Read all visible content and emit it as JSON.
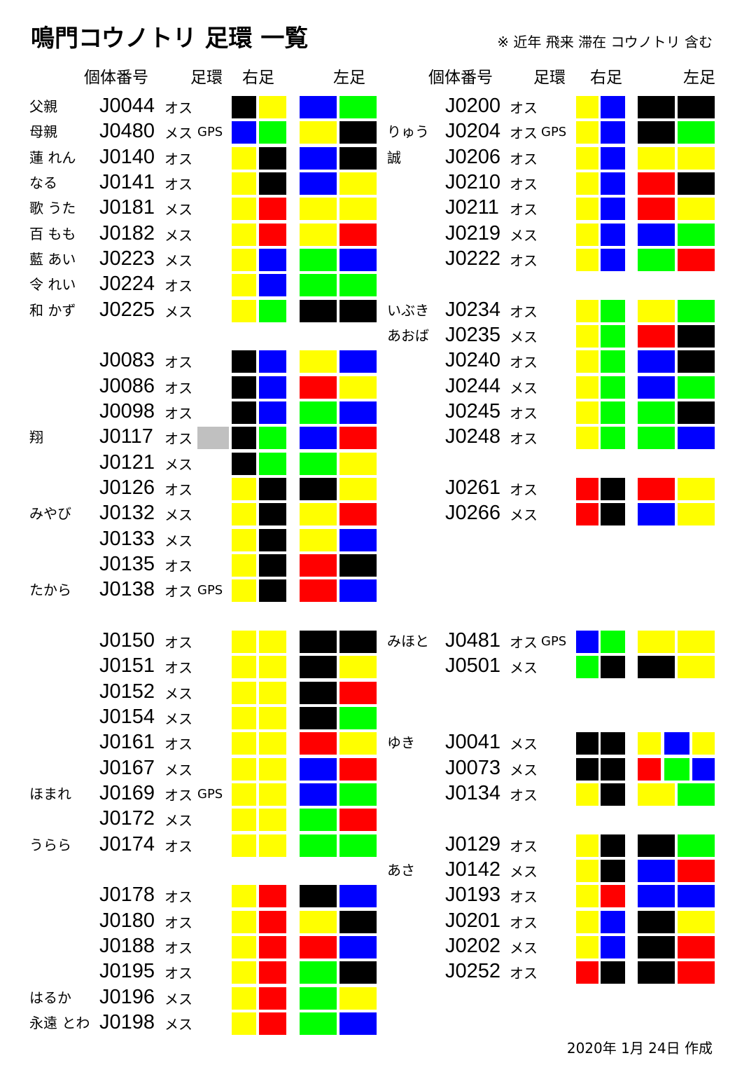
{
  "header": {
    "title": "鳴門コウノトリ 足環 一覧",
    "note": "※ 近年 飛来 滞在 コウノトリ 含む"
  },
  "columns": [
    {
      "headers": {
        "id": "個体番号",
        "ring": "足環",
        "right": "右足",
        "left": "左足"
      },
      "groups": [
        [
          {
            "name": "父親",
            "id": "J0044",
            "sex": "オス",
            "right": [
              "#000",
              "#ff0"
            ],
            "left": [
              "#00f",
              "#0f0"
            ]
          },
          {
            "name": "母親",
            "id": "J0480",
            "sex": "メス",
            "gps": "GPS",
            "right": [
              "#00f",
              "#0f0"
            ],
            "left": [
              "#ff0",
              "#000"
            ]
          },
          {
            "name": "蓮 れん",
            "id": "J0140",
            "sex": "オス",
            "right": [
              "#ff0",
              "#000"
            ],
            "left": [
              "#00f",
              "#000"
            ]
          },
          {
            "name": "なる",
            "id": "J0141",
            "sex": "オス",
            "right": [
              "#ff0",
              "#000"
            ],
            "left": [
              "#00f",
              "#ff0"
            ]
          },
          {
            "name": "歌 うた",
            "id": "J0181",
            "sex": "メス",
            "right": [
              "#ff0",
              "#f00"
            ],
            "left": [
              "#ff0",
              "#ff0"
            ]
          },
          {
            "name": "百 もも",
            "id": "J0182",
            "sex": "メス",
            "right": [
              "#ff0",
              "#f00"
            ],
            "left": [
              "#ff0",
              "#f00"
            ]
          },
          {
            "name": "藍 あい",
            "id": "J0223",
            "sex": "メス",
            "right": [
              "#ff0",
              "#00f"
            ],
            "left": [
              "#0f0",
              "#00f"
            ]
          },
          {
            "name": "令 れい",
            "id": "J0224",
            "sex": "オス",
            "right": [
              "#ff0",
              "#00f"
            ],
            "left": [
              "#0f0",
              "#0f0"
            ]
          },
          {
            "name": "和 かず",
            "id": "J0225",
            "sex": "メス",
            "right": [
              "#ff0",
              "#0f0"
            ],
            "left": [
              "#000",
              "#000"
            ]
          }
        ],
        [
          {
            "id": "J0083",
            "sex": "オス",
            "right": [
              "#000",
              "#00f"
            ],
            "left": [
              "#ff0",
              "#00f"
            ]
          },
          {
            "id": "J0086",
            "sex": "オス",
            "right": [
              "#000",
              "#00f"
            ],
            "left": [
              "#f00",
              "#ff0"
            ]
          },
          {
            "id": "J0098",
            "sex": "オス",
            "right": [
              "#000",
              "#00f"
            ],
            "left": [
              "#0f0",
              "#00f"
            ]
          },
          {
            "name": "翔",
            "id": "J0117",
            "sex": "オス",
            "tag": "#c0c0c0",
            "right": [
              "#000",
              "#0f0"
            ],
            "left": [
              "#00f",
              "#f00"
            ]
          },
          {
            "id": "J0121",
            "sex": "メス",
            "right": [
              "#000",
              "#0f0"
            ],
            "left": [
              "#0f0",
              "#ff0"
            ]
          },
          {
            "id": "J0126",
            "sex": "オス",
            "right": [
              "#ff0",
              "#000"
            ],
            "left": [
              "#000",
              "#ff0"
            ]
          },
          {
            "name": "みやび",
            "id": "J0132",
            "sex": "メス",
            "right": [
              "#ff0",
              "#000"
            ],
            "left": [
              "#ff0",
              "#f00"
            ]
          },
          {
            "id": "J0133",
            "sex": "メス",
            "right": [
              "#ff0",
              "#000"
            ],
            "left": [
              "#ff0",
              "#00f"
            ]
          },
          {
            "id": "J0135",
            "sex": "オス",
            "right": [
              "#ff0",
              "#000"
            ],
            "left": [
              "#f00",
              "#000"
            ]
          },
          {
            "name": "たから",
            "id": "J0138",
            "sex": "オス",
            "gps": "GPS",
            "right": [
              "#ff0",
              "#000"
            ],
            "left": [
              "#f00",
              "#00f"
            ]
          }
        ],
        [
          {
            "id": "J0150",
            "sex": "オス",
            "right": [
              "#ff0",
              "#ff0"
            ],
            "left": [
              "#000",
              "#000"
            ]
          },
          {
            "id": "J0151",
            "sex": "オス",
            "right": [
              "#ff0",
              "#ff0"
            ],
            "left": [
              "#000",
              "#ff0"
            ]
          },
          {
            "id": "J0152",
            "sex": "メス",
            "right": [
              "#ff0",
              "#ff0"
            ],
            "left": [
              "#000",
              "#f00"
            ]
          },
          {
            "id": "J0154",
            "sex": "メス",
            "right": [
              "#ff0",
              "#ff0"
            ],
            "left": [
              "#000",
              "#0f0"
            ]
          },
          {
            "id": "J0161",
            "sex": "オス",
            "right": [
              "#ff0",
              "#ff0"
            ],
            "left": [
              "#f00",
              "#ff0"
            ]
          },
          {
            "id": "J0167",
            "sex": "メス",
            "right": [
              "#ff0",
              "#ff0"
            ],
            "left": [
              "#00f",
              "#f00"
            ]
          },
          {
            "name": "ほまれ",
            "id": "J0169",
            "sex": "オス",
            "gps": "GPS",
            "right": [
              "#ff0",
              "#ff0"
            ],
            "left": [
              "#00f",
              "#0f0"
            ]
          },
          {
            "id": "J0172",
            "sex": "メス",
            "right": [
              "#ff0",
              "#ff0"
            ],
            "left": [
              "#0f0",
              "#f00"
            ]
          },
          {
            "name": "うらら",
            "id": "J0174",
            "sex": "オス",
            "right": [
              "#ff0",
              "#ff0"
            ],
            "left": [
              "#0f0",
              "#0f0"
            ]
          }
        ],
        [
          {
            "id": "J0178",
            "sex": "オス",
            "right": [
              "#ff0",
              "#f00"
            ],
            "left": [
              "#000",
              "#00f"
            ]
          },
          {
            "id": "J0180",
            "sex": "オス",
            "right": [
              "#ff0",
              "#f00"
            ],
            "left": [
              "#ff0",
              "#000"
            ]
          },
          {
            "id": "J0188",
            "sex": "オス",
            "right": [
              "#ff0",
              "#f00"
            ],
            "left": [
              "#f00",
              "#00f"
            ]
          },
          {
            "id": "J0195",
            "sex": "オス",
            "right": [
              "#ff0",
              "#f00"
            ],
            "left": [
              "#0f0",
              "#000"
            ]
          },
          {
            "name": "はるか",
            "id": "J0196",
            "sex": "メス",
            "right": [
              "#ff0",
              "#f00"
            ],
            "left": [
              "#0f0",
              "#ff0"
            ]
          },
          {
            "name": "永遠 とわ",
            "id": "J0198",
            "sex": "メス",
            "right": [
              "#ff0",
              "#f00"
            ],
            "left": [
              "#0f0",
              "#00f"
            ]
          }
        ]
      ]
    },
    {
      "headers": {
        "id": "個体番号",
        "ring": "足環",
        "right": "右足",
        "left": "左足"
      },
      "groups": [
        [
          {
            "id": "J0200",
            "sex": "オス",
            "right": [
              "#ff0",
              "#00f"
            ],
            "left": [
              "#000",
              "#000"
            ]
          },
          {
            "name": "りゅう",
            "id": "J0204",
            "sex": "オス",
            "gps": "GPS",
            "right": [
              "#ff0",
              "#00f"
            ],
            "left": [
              "#000",
              "#0f0"
            ]
          },
          {
            "name": "誠",
            "id": "J0206",
            "sex": "オス",
            "right": [
              "#ff0",
              "#00f"
            ],
            "left": [
              "#ff0",
              "#ff0"
            ]
          },
          {
            "id": "J0210",
            "sex": "オス",
            "right": [
              "#ff0",
              "#00f"
            ],
            "left": [
              "#f00",
              "#000"
            ]
          },
          {
            "id": "J0211",
            "sex": "オス",
            "right": [
              "#ff0",
              "#00f"
            ],
            "left": [
              "#f00",
              "#ff0"
            ]
          },
          {
            "id": "J0219",
            "sex": "メス",
            "right": [
              "#ff0",
              "#00f"
            ],
            "left": [
              "#00f",
              "#0f0"
            ]
          },
          {
            "id": "J0222",
            "sex": "オス",
            "right": [
              "#ff0",
              "#00f"
            ],
            "left": [
              "#0f0",
              "#f00"
            ]
          }
        ],
        [
          {
            "name": "いぶき",
            "id": "J0234",
            "sex": "オス",
            "right": [
              "#ff0",
              "#0f0"
            ],
            "left": [
              "#ff0",
              "#0f0"
            ]
          },
          {
            "name": "あおば",
            "id": "J0235",
            "sex": "メス",
            "right": [
              "#ff0",
              "#0f0"
            ],
            "left": [
              "#f00",
              "#000"
            ]
          },
          {
            "id": "J0240",
            "sex": "オス",
            "right": [
              "#ff0",
              "#0f0"
            ],
            "left": [
              "#00f",
              "#000"
            ]
          },
          {
            "id": "J0244",
            "sex": "メス",
            "right": [
              "#ff0",
              "#0f0"
            ],
            "left": [
              "#00f",
              "#0f0"
            ]
          },
          {
            "id": "J0245",
            "sex": "オス",
            "right": [
              "#ff0",
              "#0f0"
            ],
            "left": [
              "#0f0",
              "#000"
            ]
          },
          {
            "id": "J0248",
            "sex": "オス",
            "right": [
              "#ff0",
              "#0f0"
            ],
            "left": [
              "#0f0",
              "#00f"
            ]
          }
        ],
        [
          {
            "id": "J0261",
            "sex": "オス",
            "right": [
              "#f00",
              "#000"
            ],
            "left": [
              "#f00",
              "#ff0"
            ]
          },
          {
            "id": "J0266",
            "sex": "メス",
            "right": [
              "#f00",
              "#000"
            ],
            "left": [
              "#00f",
              "#ff0"
            ]
          }
        ],
        [
          {
            "name": "みほと",
            "id": "J0481",
            "sex": "オス",
            "gps": "GPS",
            "right": [
              "#00f",
              "#0f0"
            ],
            "left": [
              "#ff0",
              "#ff0"
            ]
          },
          {
            "id": "J0501",
            "sex": "メス",
            "right": [
              "#0f0",
              "#000"
            ],
            "left": [
              "#000",
              "#ff0"
            ]
          }
        ],
        [
          {
            "name": "ゆき",
            "id": "J0041",
            "sex": "メス",
            "right": [
              "#000",
              "#000"
            ],
            "left": [
              "#ff0",
              "#00f",
              "#ff0"
            ]
          },
          {
            "id": "J0073",
            "sex": "メス",
            "right": [
              "#000",
              "#000"
            ],
            "left": [
              "#f00",
              "#0f0",
              "#00f"
            ]
          },
          {
            "id": "J0134",
            "sex": "オス",
            "right": [
              "#ff0",
              "#000"
            ],
            "left": [
              "#ff0",
              "#0f0"
            ]
          }
        ],
        [
          {
            "id": "J0129",
            "sex": "オス",
            "right": [
              "#ff0",
              "#000"
            ],
            "left": [
              "#000",
              "#0f0"
            ]
          },
          {
            "name": "あさ",
            "id": "J0142",
            "sex": "メス",
            "right": [
              "#ff0",
              "#000"
            ],
            "left": [
              "#00f",
              "#f00"
            ]
          },
          {
            "id": "J0193",
            "sex": "オス",
            "right": [
              "#ff0",
              "#f00"
            ],
            "left": [
              "#00f",
              "#00f"
            ]
          },
          {
            "id": "J0201",
            "sex": "オス",
            "right": [
              "#ff0",
              "#00f"
            ],
            "left": [
              "#000",
              "#ff0"
            ]
          },
          {
            "id": "J0202",
            "sex": "メス",
            "right": [
              "#ff0",
              "#00f"
            ],
            "left": [
              "#000",
              "#f00"
            ]
          },
          {
            "id": "J0252",
            "sex": "オス",
            "right": [
              "#f00",
              "#000"
            ],
            "left": [
              "#000",
              "#f00"
            ]
          }
        ]
      ]
    }
  ],
  "footer": {
    "date": "2020年 1月 24日 作成"
  }
}
